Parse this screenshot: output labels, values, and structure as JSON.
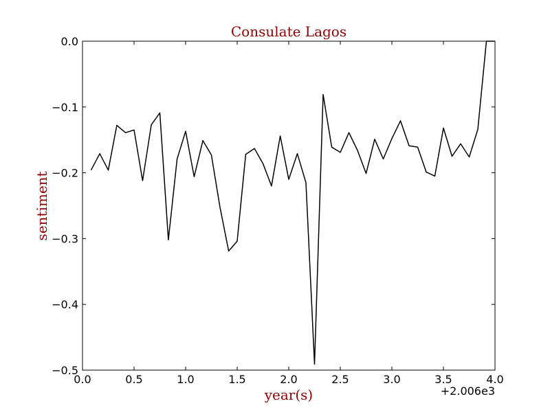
{
  "chart_data": {
    "type": "line",
    "title": "Consulate Lagos",
    "xlabel": "year(s)",
    "ylabel": "sentiment",
    "x_offset_label": "+2.006e3",
    "xlim": [
      0.0,
      4.0
    ],
    "ylim": [
      -0.5,
      0.0
    ],
    "xticks": [
      "0.0",
      "0.5",
      "1.0",
      "1.5",
      "2.0",
      "2.5",
      "3.0",
      "3.5",
      "4.0"
    ],
    "yticks": [
      "0.0",
      "−0.1",
      "−0.2",
      "−0.3",
      "−0.4",
      "−0.5"
    ],
    "line_color": "#000000",
    "series": [
      {
        "name": "sentiment",
        "x": [
          0.083,
          0.167,
          0.25,
          0.333,
          0.417,
          0.5,
          0.583,
          0.667,
          0.75,
          0.833,
          0.917,
          1.0,
          1.083,
          1.167,
          1.25,
          1.333,
          1.417,
          1.5,
          1.583,
          1.667,
          1.75,
          1.833,
          1.917,
          2.0,
          2.083,
          2.167,
          2.25,
          2.333,
          2.417,
          2.5,
          2.583,
          2.667,
          2.75,
          2.833,
          2.917,
          3.0,
          3.083,
          3.167,
          3.25,
          3.333,
          3.417,
          3.5,
          3.583,
          3.667,
          3.75,
          3.833,
          3.917,
          4.0
        ],
        "values": [
          -0.196,
          -0.171,
          -0.196,
          -0.128,
          -0.139,
          -0.135,
          -0.212,
          -0.127,
          -0.109,
          -0.302,
          -0.179,
          -0.137,
          -0.206,
          -0.151,
          -0.173,
          -0.252,
          -0.319,
          -0.304,
          -0.172,
          -0.163,
          -0.186,
          -0.22,
          -0.144,
          -0.21,
          -0.171,
          -0.215,
          -0.491,
          -0.081,
          -0.161,
          -0.169,
          -0.139,
          -0.166,
          -0.201,
          -0.149,
          -0.179,
          -0.148,
          -0.121,
          -0.159,
          -0.161,
          -0.199,
          -0.205,
          -0.132,
          -0.175,
          -0.156,
          -0.176,
          -0.134,
          0.0,
          0.0
        ]
      }
    ]
  }
}
